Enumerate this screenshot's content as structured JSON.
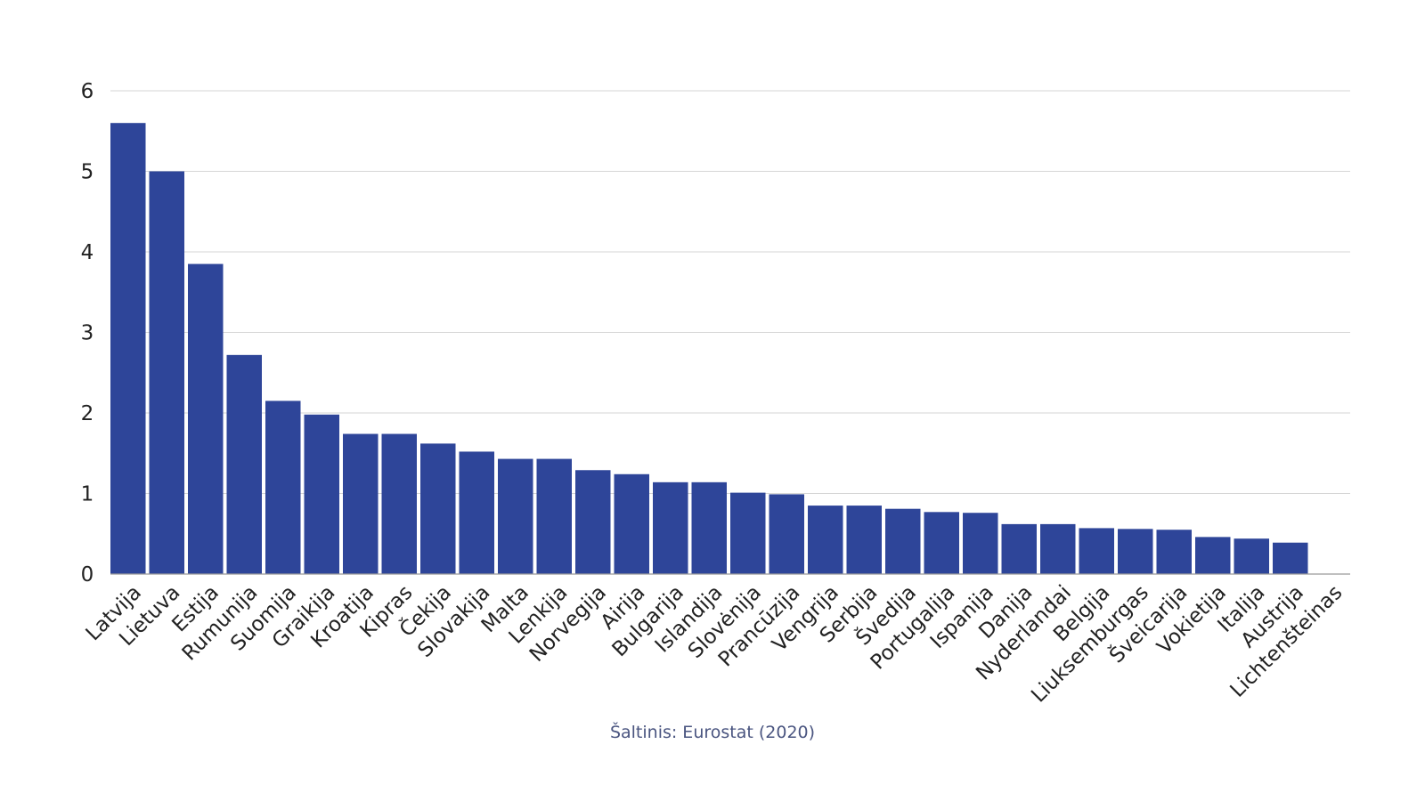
{
  "chart_data": {
    "type": "bar",
    "title": "",
    "xlabel": "",
    "ylabel": "",
    "ylim": [
      0,
      6
    ],
    "yticks": [
      0,
      1,
      2,
      3,
      4,
      5,
      6
    ],
    "grid": true,
    "legend": "none",
    "bar_color": "#2e4599",
    "categories": [
      "Latvija",
      "Lietuva",
      "Estija",
      "Rumunija",
      "Suomija",
      "Graikija",
      "Kroatija",
      "Kipras",
      "Čekija",
      "Slovakija",
      "Malta",
      "Lenkija",
      "Norvegija",
      "Airija",
      "Bulgarija",
      "Islandija",
      "Slovėnija",
      "Prancūzija",
      "Vengrija",
      "Serbija",
      "Švedija",
      "Portugalija",
      "Ispanija",
      "Danija",
      "Nyderlandai",
      "Belgija",
      "Liuksemburgas",
      "Šveicarija",
      "Vokietija",
      "Italija",
      "Austrija",
      "Lichtenšteinas"
    ],
    "values": [
      5.6,
      5.0,
      3.85,
      2.72,
      2.15,
      1.98,
      1.74,
      1.74,
      1.62,
      1.52,
      1.43,
      1.43,
      1.29,
      1.24,
      1.14,
      1.14,
      1.01,
      0.99,
      0.85,
      0.85,
      0.81,
      0.77,
      0.76,
      0.62,
      0.62,
      0.57,
      0.56,
      0.55,
      0.46,
      0.44,
      0.39,
      0
    ]
  },
  "source": "Šaltinis: Eurostat (2020)"
}
